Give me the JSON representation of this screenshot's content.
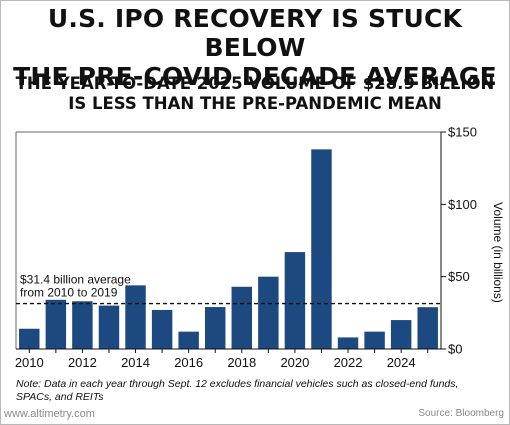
{
  "header": {
    "title_lines": [
      "U.S. IPO RECOVERY IS STUCK BELOW",
      "THE PRE-COVID DECADE AVERAGE"
    ],
    "subtitle_lines": [
      "THE YEAR-TO-DATE 2025 VOLUME OF $28.9 BILLION",
      "IS LESS THAN THE PRE-PANDEMIC MEAN"
    ]
  },
  "chart_data": {
    "type": "bar",
    "categories": [
      "2010",
      "2011",
      "2012",
      "2013",
      "2014",
      "2015",
      "2016",
      "2017",
      "2018",
      "2019",
      "2020",
      "2021",
      "2022",
      "2023",
      "2024",
      "2025"
    ],
    "values": [
      14,
      34,
      33,
      30,
      44,
      27,
      12,
      29,
      43,
      50,
      67,
      138,
      8,
      12,
      20,
      28.9
    ],
    "x_tick_labels": [
      "2010",
      "2012",
      "2014",
      "2016",
      "2018",
      "2020",
      "2022",
      "2024"
    ],
    "y_ticks": [
      0,
      50,
      100,
      150
    ],
    "y_tick_labels": [
      "$0",
      "$50",
      "$100",
      "$150"
    ],
    "ylim": [
      0,
      150
    ],
    "ylabel": "Volume (in billions)",
    "xlabel": "",
    "bar_color": "#1c4a80",
    "grid": false,
    "y_axis_position": "right",
    "reference_line": {
      "value": 31.4,
      "style": "dashed",
      "label_lines": [
        "$31.4 billion average",
        "from 2010 to 2019"
      ]
    }
  },
  "note": "Note: Data in each year through Sept. 12 excludes financial vehicles such as closed-end funds, SPACs, and REITs",
  "footer": {
    "site": "www.altimetry.com",
    "source": "Source: Bloomberg"
  }
}
